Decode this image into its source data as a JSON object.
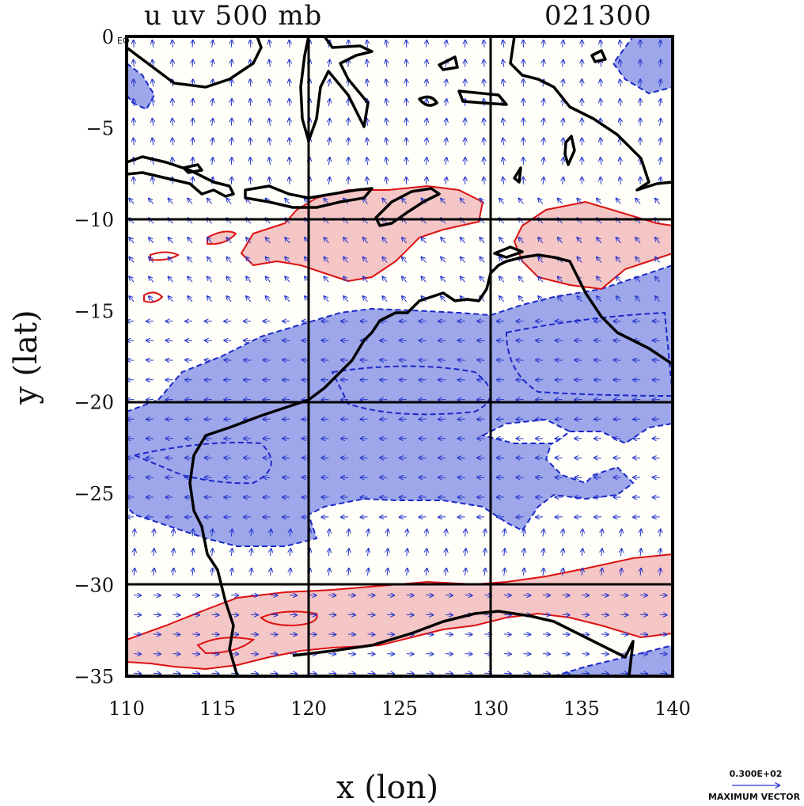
{
  "title_left": "u uv 500 mb",
  "title_right": "021300",
  "xlabel": "x (lon)",
  "ylabel": "y (lat)",
  "eq_label": "EQ",
  "x_ticks": [
    "110",
    "115",
    "120",
    "125",
    "130",
    "135",
    "140"
  ],
  "y_ticks": [
    "0",
    "−5",
    "−10",
    "−15",
    "−20",
    "−25",
    "−30",
    "−35"
  ],
  "legend": {
    "value": "0.300E+02",
    "label": "MAXIMUM VECTOR"
  },
  "colors": {
    "positive_fill": "#f5c6c6",
    "positive_line": "#dd1111",
    "negative_fill": "#9ea7ea",
    "negative_line": "#1a28c8",
    "coast": "#000000",
    "vector": "#2233cc"
  },
  "chart_data": {
    "type": "map",
    "variable": "u wind + uv vectors",
    "level_mb": 500,
    "time": "021300",
    "lon_range": [
      110,
      140
    ],
    "lat_range": [
      -35,
      0
    ],
    "grid_lon": [
      120,
      130
    ],
    "grid_lat": [
      -10,
      -20,
      -30
    ],
    "max_vector": 30
  }
}
